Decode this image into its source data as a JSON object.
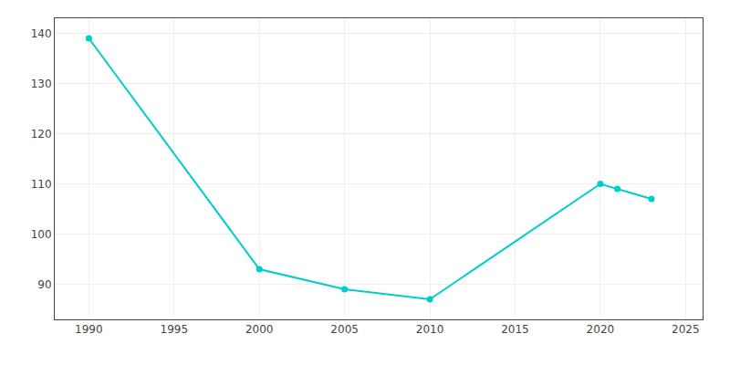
{
  "chart_data": {
    "type": "line",
    "x": [
      1990,
      2000,
      2005,
      2010,
      2020,
      2021,
      2023
    ],
    "values": [
      139,
      93,
      89,
      87,
      110,
      109,
      107
    ],
    "color": "#00CCCC",
    "marker": "circle",
    "xlim": [
      1988,
      2026
    ],
    "xticks": [
      1990,
      1995,
      2000,
      2005,
      2010,
      2015,
      2020,
      2025
    ],
    "ylim": [
      83,
      143
    ],
    "yticks": [
      90,
      100,
      110,
      120,
      130,
      140
    ],
    "grid": true
  }
}
